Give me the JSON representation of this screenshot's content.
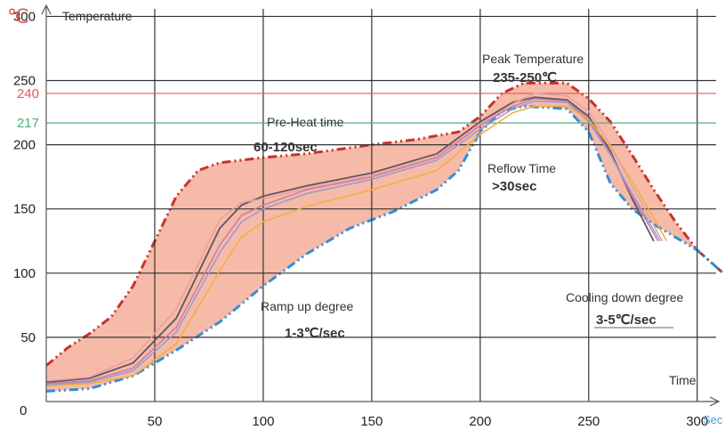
{
  "chart_data": {
    "type": "line",
    "title": "",
    "y_unit": "℃",
    "ylabel": "Temperature",
    "xlabel": "Time",
    "x_unit": "Sec",
    "xlim": [
      0,
      312
    ],
    "ylim": [
      0,
      310
    ],
    "x_ticks": [
      "50",
      "100",
      "150",
      "200",
      "250",
      "300"
    ],
    "x_tick_values": [
      50,
      100,
      150,
      200,
      250,
      300
    ],
    "origin_label": "0",
    "y_ticks": [
      "50",
      "100",
      "150",
      "200",
      "250",
      "300"
    ],
    "y_tick_values": [
      50,
      100,
      150,
      200,
      250,
      300
    ],
    "reference_lines": [
      {
        "label": "240",
        "value": 240,
        "color": "#e05a5a"
      },
      {
        "label": "217",
        "value": 217,
        "color": "#4caf7d"
      }
    ],
    "grid": true,
    "band": {
      "color": "#f5b39e",
      "upper": [
        [
          0,
          28
        ],
        [
          10,
          42
        ],
        [
          20,
          53
        ],
        [
          30,
          66
        ],
        [
          40,
          90
        ],
        [
          50,
          125
        ],
        [
          60,
          160
        ],
        [
          70,
          180
        ],
        [
          80,
          186
        ],
        [
          90,
          188
        ],
        [
          100,
          190
        ],
        [
          120,
          193
        ],
        [
          150,
          200
        ],
        [
          170,
          204
        ],
        [
          190,
          210
        ],
        [
          200,
          222
        ],
        [
          210,
          240
        ],
        [
          220,
          248
        ],
        [
          240,
          248
        ],
        [
          250,
          236
        ],
        [
          260,
          218
        ],
        [
          270,
          192
        ],
        [
          280,
          165
        ],
        [
          290,
          140
        ],
        [
          300,
          118
        ],
        [
          310,
          103
        ],
        [
          312,
          100
        ]
      ],
      "lower": [
        [
          0,
          8
        ],
        [
          20,
          10
        ],
        [
          40,
          20
        ],
        [
          60,
          40
        ],
        [
          80,
          62
        ],
        [
          100,
          90
        ],
        [
          120,
          115
        ],
        [
          140,
          135
        ],
        [
          160,
          148
        ],
        [
          180,
          165
        ],
        [
          190,
          180
        ],
        [
          200,
          210
        ],
        [
          210,
          226
        ],
        [
          220,
          230
        ],
        [
          240,
          228
        ],
        [
          250,
          210
        ],
        [
          260,
          170
        ],
        [
          270,
          150
        ],
        [
          280,
          138
        ],
        [
          290,
          128
        ],
        [
          300,
          118
        ],
        [
          312,
          100
        ]
      ],
      "upper_line_color": "#c8322c",
      "lower_line_color": "#2f8fd8"
    },
    "series": [
      {
        "color": "#5f5562",
        "values": [
          [
            0,
            15
          ],
          [
            20,
            18
          ],
          [
            40,
            30
          ],
          [
            60,
            65
          ],
          [
            80,
            135
          ],
          [
            90,
            153
          ],
          [
            100,
            160
          ],
          [
            120,
            168
          ],
          [
            150,
            178
          ],
          [
            180,
            193
          ],
          [
            200,
            218
          ],
          [
            215,
            233
          ],
          [
            225,
            237
          ],
          [
            240,
            235
          ],
          [
            250,
            222
          ],
          [
            260,
            195
          ],
          [
            270,
            158
          ],
          [
            280,
            125
          ]
        ]
      },
      {
        "color": "#c77ba8",
        "values": [
          [
            0,
            14
          ],
          [
            20,
            16
          ],
          [
            40,
            26
          ],
          [
            60,
            58
          ],
          [
            80,
            122
          ],
          [
            90,
            145
          ],
          [
            100,
            153
          ],
          [
            120,
            165
          ],
          [
            150,
            175
          ],
          [
            180,
            190
          ],
          [
            200,
            215
          ],
          [
            215,
            230
          ],
          [
            225,
            236
          ],
          [
            240,
            234
          ],
          [
            250,
            220
          ],
          [
            260,
            193
          ],
          [
            270,
            160
          ],
          [
            282,
            125
          ]
        ]
      },
      {
        "color": "#9a9ad0",
        "values": [
          [
            0,
            13
          ],
          [
            20,
            15
          ],
          [
            40,
            24
          ],
          [
            60,
            54
          ],
          [
            80,
            116
          ],
          [
            90,
            140
          ],
          [
            100,
            150
          ],
          [
            120,
            162
          ],
          [
            150,
            173
          ],
          [
            180,
            188
          ],
          [
            200,
            212
          ],
          [
            215,
            228
          ],
          [
            225,
            234
          ],
          [
            240,
            233
          ],
          [
            250,
            218
          ],
          [
            260,
            192
          ],
          [
            270,
            162
          ],
          [
            283,
            125
          ]
        ]
      },
      {
        "color": "#f0b03a",
        "values": [
          [
            0,
            12
          ],
          [
            20,
            14
          ],
          [
            40,
            20
          ],
          [
            60,
            45
          ],
          [
            80,
            102
          ],
          [
            90,
            128
          ],
          [
            100,
            140
          ],
          [
            120,
            152
          ],
          [
            150,
            165
          ],
          [
            180,
            180
          ],
          [
            200,
            208
          ],
          [
            215,
            225
          ],
          [
            225,
            230
          ],
          [
            240,
            230
          ],
          [
            250,
            220
          ],
          [
            260,
            198
          ],
          [
            270,
            172
          ],
          [
            286,
            125
          ]
        ]
      },
      {
        "color": "#e8a0a0",
        "values": [
          [
            0,
            16
          ],
          [
            20,
            19
          ],
          [
            40,
            34
          ],
          [
            60,
            72
          ],
          [
            80,
            142
          ],
          [
            90,
            155
          ],
          [
            100,
            158
          ],
          [
            120,
            166
          ],
          [
            150,
            176
          ],
          [
            180,
            191
          ],
          [
            200,
            216
          ],
          [
            215,
            232
          ],
          [
            225,
            240
          ],
          [
            240,
            238
          ],
          [
            250,
            226
          ],
          [
            260,
            200
          ],
          [
            270,
            168
          ],
          [
            284,
            125
          ]
        ]
      }
    ],
    "annotations": {
      "peak_title": "Peak Temperature",
      "peak_value": "235-250℃",
      "preheat_title": "Pre-Heat time",
      "preheat_value": "60-120sec",
      "reflow_title": "Reflow Time",
      "reflow_value": ">30sec",
      "ramp_title": "Ramp up degree",
      "ramp_value": "1-3℃/sec",
      "cooling_title": "Cooling down degree",
      "cooling_value": "3-5℃/sec"
    },
    "colors": {
      "grid": "#333333",
      "axis": "#555555",
      "unit": "#d9534f",
      "x_unit": "#4a9fd4"
    }
  }
}
